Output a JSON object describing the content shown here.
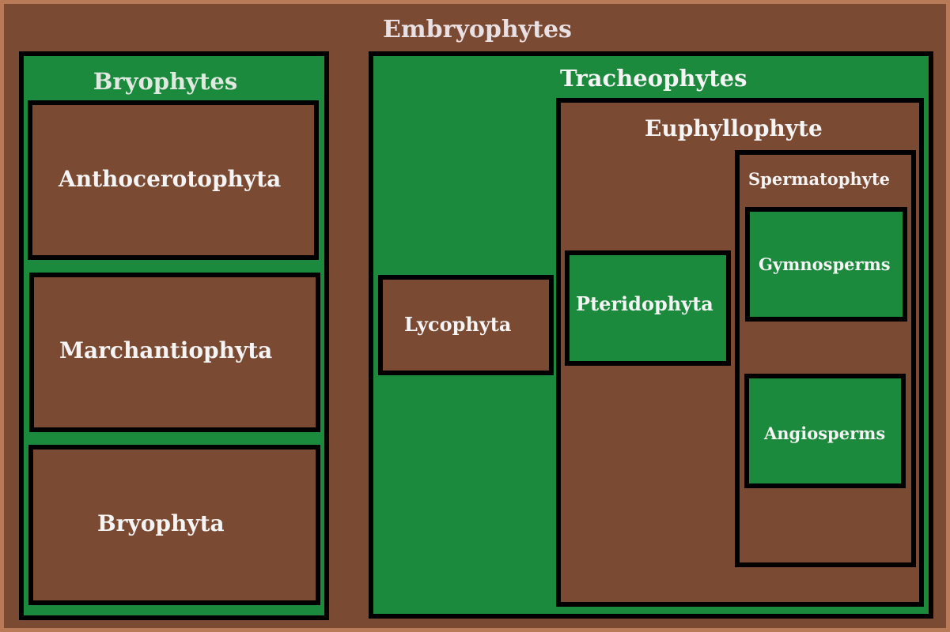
{
  "diagram": {
    "root": {
      "label": "Embryophytes"
    },
    "bryophytes": {
      "label": "Bryophytes",
      "children": [
        {
          "label": "Anthocerotophyta"
        },
        {
          "label": "Marchantiophyta"
        },
        {
          "label": "Bryophyta"
        }
      ]
    },
    "tracheophytes": {
      "label": "Tracheophytes",
      "lycophyta": {
        "label": "Lycophyta"
      },
      "euphyllophyte": {
        "label": "Euphyllophyte",
        "pteridophyta": {
          "label": "Pteridophyta"
        },
        "spermatophyte": {
          "label": "Spermatophyte",
          "gymnosperms": {
            "label": "Gymnosperms"
          },
          "angiosperms": {
            "label": "Angiosperms"
          }
        }
      }
    }
  },
  "colors": {
    "outer_border": "#b97a57",
    "brown": "#7a4a33",
    "green": "#1b8a3c",
    "box_border": "#000000",
    "text": "#f4f4f4"
  }
}
